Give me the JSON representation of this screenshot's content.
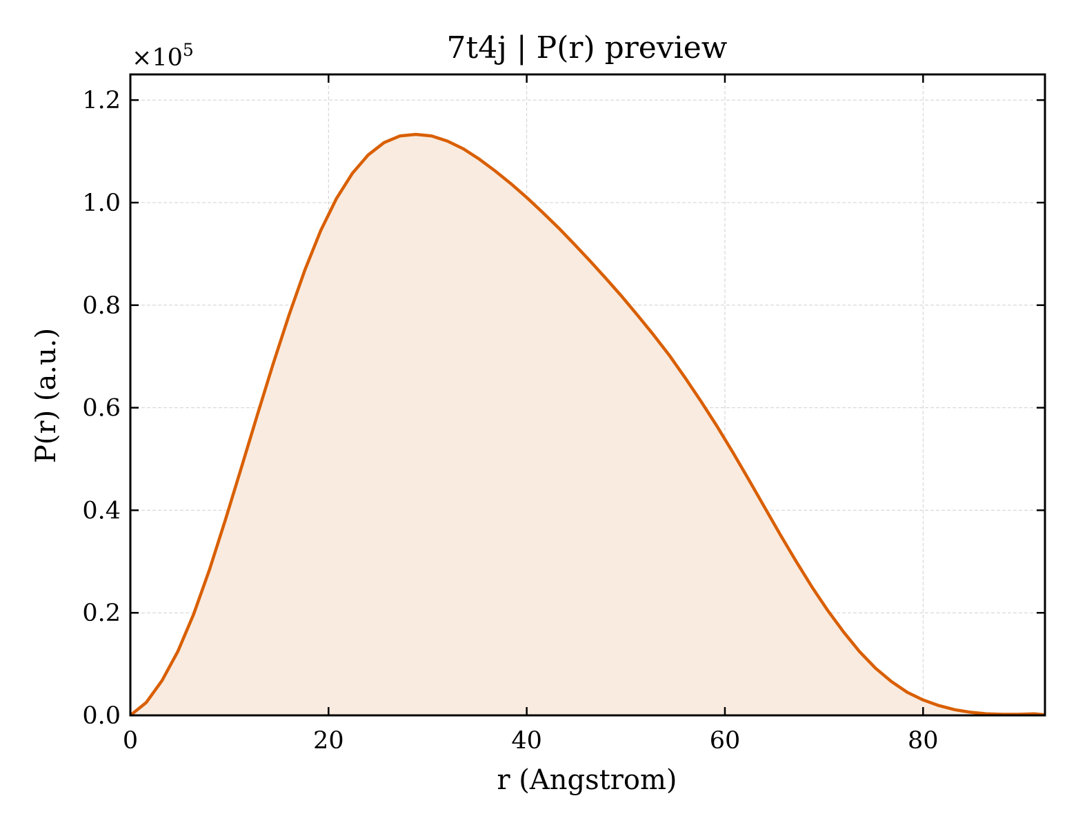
{
  "chart_data": {
    "type": "area",
    "title": "7t4j | P(r) preview",
    "xlabel": "r (Angstrom)",
    "ylabel": "P(r) (a.u.)",
    "y_scale_multiplier": "×10",
    "y_scale_exponent": "5",
    "xlim": [
      0,
      92.3
    ],
    "ylim": [
      0,
      1.25
    ],
    "x_ticks": [
      0,
      20,
      40,
      60,
      80
    ],
    "x_tick_labels": [
      "0",
      "20",
      "40",
      "60",
      "80"
    ],
    "y_ticks": [
      0,
      0.2,
      0.4,
      0.6,
      0.8,
      1.0,
      1.2
    ],
    "y_tick_labels": [
      "0.0",
      "0.2",
      "0.4",
      "0.6",
      "0.8",
      "1.0",
      "1.2"
    ],
    "grid": true,
    "colors": {
      "line": "#d95f02",
      "fill": "#f9ebe0",
      "grid": "#d0d0d0",
      "axes": "#000000"
    },
    "series": [
      {
        "x": [
          0,
          1.6,
          3.2,
          4.8,
          6.4,
          8.0,
          9.6,
          11.2,
          12.8,
          14.4,
          16.0,
          17.6,
          19.2,
          20.8,
          22.4,
          24.0,
          25.6,
          27.2,
          28.8,
          30.4,
          32.0,
          33.6,
          35.2,
          36.8,
          38.4,
          40.0,
          41.6,
          43.2,
          44.8,
          46.4,
          48.0,
          49.6,
          51.2,
          52.8,
          54.4,
          56.0,
          57.6,
          59.2,
          60.8,
          62.4,
          64.0,
          65.6,
          67.2,
          68.8,
          70.4,
          72.0,
          73.6,
          75.2,
          76.8,
          78.4,
          80.0,
          81.6,
          83.2,
          84.8,
          86.4,
          88.0,
          89.6,
          91.2,
          92.3
        ],
        "y": [
          0.0,
          0.025,
          0.068,
          0.125,
          0.198,
          0.285,
          0.382,
          0.483,
          0.585,
          0.685,
          0.78,
          0.868,
          0.945,
          1.008,
          1.057,
          1.093,
          1.117,
          1.13,
          1.133,
          1.13,
          1.12,
          1.105,
          1.085,
          1.062,
          1.037,
          1.01,
          0.981,
          0.951,
          0.919,
          0.886,
          0.852,
          0.817,
          0.78,
          0.742,
          0.702,
          0.658,
          0.612,
          0.564,
          0.513,
          0.46,
          0.406,
          0.352,
          0.3,
          0.25,
          0.204,
          0.162,
          0.124,
          0.092,
          0.066,
          0.045,
          0.03,
          0.019,
          0.011,
          0.006,
          0.003,
          0.002,
          0.002,
          0.003,
          0.001
        ]
      }
    ]
  }
}
